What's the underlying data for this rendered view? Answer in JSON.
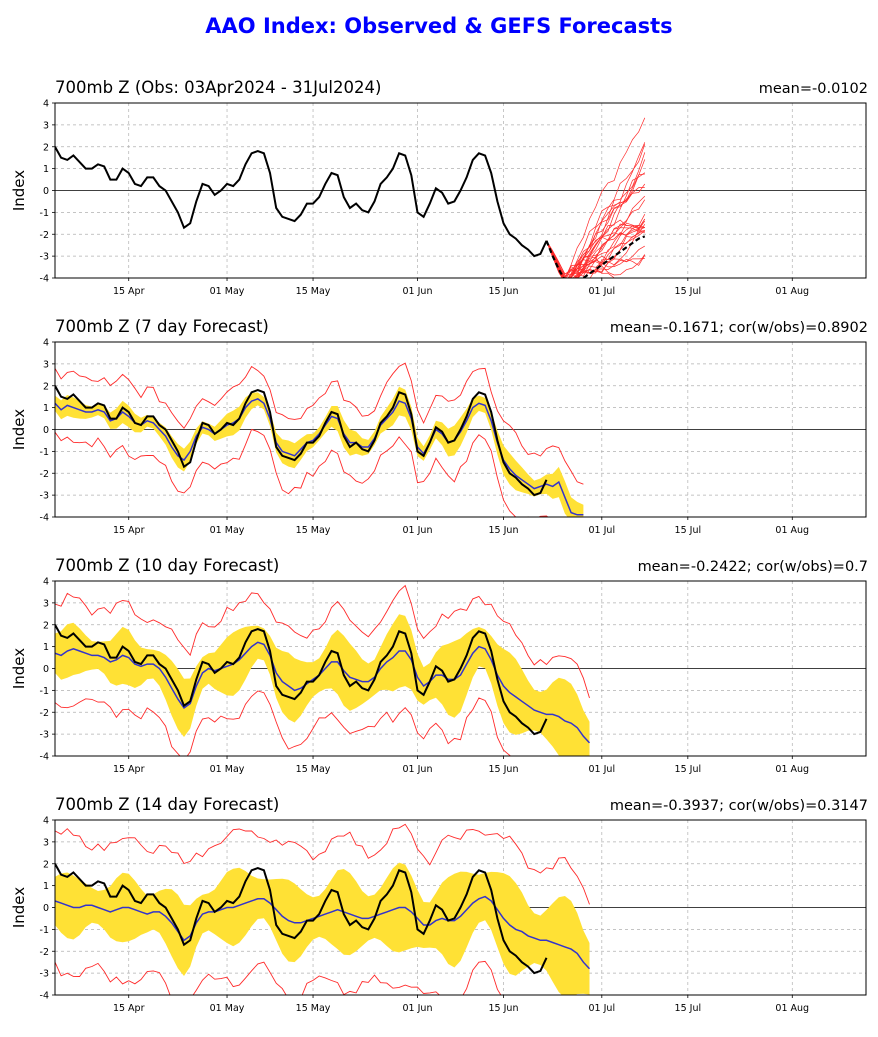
{
  "title": "AAO Index: Observed & GEFS Forecasts",
  "colors": {
    "title": "#0000ff",
    "obs": "#000000",
    "ens_mean": "#3333cc",
    "spread": "#ffe135",
    "members": "#ff2a2a",
    "grid": "#b0b0b0"
  },
  "panels": [
    {
      "title": "700mb Z (Obs: 03Apr2024 - 31Jul2024)",
      "stats": "mean=-0.0102",
      "ylabel": "Index"
    },
    {
      "title": "700mb Z (7 day Forecast)",
      "stats": "mean=-0.1671; cor(w/obs)=0.8902",
      "ylabel": "Index"
    },
    {
      "title": "700mb Z (10 day Forecast)",
      "stats": "mean=-0.2422; cor(w/obs)=0.7",
      "ylabel": "Index"
    },
    {
      "title": "700mb Z (14 day Forecast)",
      "stats": "mean=-0.3937; cor(w/obs)=0.3147",
      "ylabel": "Index"
    }
  ],
  "chart_data": {
    "type": "line",
    "x_start": "2024-04-03",
    "x_ticks": [
      "15 Apr",
      "01 May",
      "15 May",
      "01 Jun",
      "15 Jun",
      "01 Jul",
      "15 Jul",
      "01 Aug"
    ],
    "y_ticks": [
      4,
      3,
      2,
      1,
      0,
      -1,
      -2,
      -3,
      -4
    ],
    "ylim": [
      -4,
      4
    ],
    "grid": true,
    "observed": [
      2.0,
      1.5,
      1.4,
      1.6,
      1.3,
      1.0,
      1.0,
      1.2,
      1.1,
      0.5,
      0.5,
      1.0,
      0.8,
      0.3,
      0.2,
      0.6,
      0.6,
      0.2,
      0.0,
      -0.5,
      -1.0,
      -1.7,
      -1.5,
      -0.5,
      0.3,
      0.2,
      -0.2,
      0.0,
      0.3,
      0.2,
      0.5,
      1.2,
      1.7,
      1.8,
      1.7,
      0.8,
      -0.8,
      -1.2,
      -1.3,
      -1.4,
      -1.1,
      -0.6,
      -0.6,
      -0.3,
      0.3,
      0.8,
      0.7,
      -0.3,
      -0.8,
      -0.6,
      -0.9,
      -1.0,
      -0.5,
      0.3,
      0.6,
      1.0,
      1.7,
      1.6,
      0.7,
      -1.0,
      -1.2,
      -0.6,
      0.1,
      -0.1,
      -0.6,
      -0.5,
      0.0,
      0.6,
      1.4,
      1.7,
      1.6,
      0.8,
      -0.5,
      -1.5,
      -2.0,
      -2.2,
      -2.5,
      -2.7,
      -3.0,
      -2.9,
      -2.3
    ],
    "series": [
      {
        "name": "obs",
        "forecast_days": 7,
        "ens_mean": [
          1.2,
          0.9,
          1.1,
          1.0,
          0.9,
          0.8,
          0.8,
          0.9,
          0.8,
          0.4,
          0.5,
          0.8,
          0.6,
          0.3,
          0.2,
          0.4,
          0.3,
          0.0,
          -0.3,
          -0.8,
          -1.2,
          -1.4,
          -1.0,
          -0.3,
          0.1,
          0.0,
          -0.2,
          0.0,
          0.2,
          0.3,
          0.5,
          1.0,
          1.3,
          1.4,
          1.2,
          0.5,
          -0.6,
          -1.0,
          -1.1,
          -1.2,
          -0.9,
          -0.6,
          -0.5,
          -0.2,
          0.2,
          0.6,
          0.5,
          -0.2,
          -0.6,
          -0.6,
          -0.8,
          -0.8,
          -0.4,
          0.2,
          0.5,
          0.8,
          1.3,
          1.2,
          0.5,
          -0.8,
          -1.1,
          -0.6,
          0.0,
          -0.2,
          -0.6,
          -0.5,
          -0.1,
          0.4,
          1.0,
          1.2,
          1.1,
          0.4,
          -0.6,
          -1.4,
          -1.8,
          -2.1,
          -2.3,
          -2.5,
          -2.7,
          -2.6,
          -2.5,
          -2.6,
          -2.4,
          -3.1,
          -3.8,
          -3.9,
          -3.9
        ]
      },
      {
        "name": "obs",
        "forecast_days": 10,
        "ens_mean": [
          0.7,
          0.6,
          0.8,
          0.9,
          0.8,
          0.7,
          0.6,
          0.6,
          0.5,
          0.3,
          0.4,
          0.6,
          0.5,
          0.2,
          0.1,
          0.2,
          0.2,
          0.0,
          -0.4,
          -0.9,
          -1.4,
          -1.8,
          -1.6,
          -0.8,
          -0.2,
          0.0,
          -0.1,
          0.0,
          0.1,
          0.2,
          0.4,
          0.7,
          1.0,
          1.2,
          1.1,
          0.6,
          -0.2,
          -0.6,
          -0.8,
          -1.0,
          -0.9,
          -0.7,
          -0.5,
          -0.3,
          0.0,
          0.3,
          0.3,
          -0.1,
          -0.4,
          -0.5,
          -0.6,
          -0.6,
          -0.4,
          0.0,
          0.3,
          0.5,
          0.8,
          0.8,
          0.4,
          -0.4,
          -0.8,
          -0.6,
          -0.3,
          -0.3,
          -0.5,
          -0.5,
          -0.3,
          0.2,
          0.7,
          1.0,
          0.9,
          0.4,
          -0.3,
          -0.8,
          -1.1,
          -1.3,
          -1.5,
          -1.7,
          -1.9,
          -2.0,
          -2.1,
          -2.1,
          -2.2,
          -2.4,
          -2.5,
          -2.7,
          -3.1,
          -3.4
        ]
      },
      {
        "name": "obs",
        "forecast_days": 14,
        "ens_mean": [
          0.3,
          0.2,
          0.1,
          0.0,
          0.0,
          0.1,
          0.1,
          0.0,
          -0.1,
          -0.2,
          -0.1,
          0.0,
          0.0,
          -0.1,
          -0.2,
          -0.3,
          -0.2,
          -0.2,
          -0.4,
          -0.7,
          -1.1,
          -1.5,
          -1.3,
          -0.7,
          -0.3,
          -0.2,
          -0.2,
          -0.1,
          0.0,
          0.0,
          0.1,
          0.2,
          0.3,
          0.4,
          0.4,
          0.2,
          -0.1,
          -0.4,
          -0.6,
          -0.7,
          -0.7,
          -0.6,
          -0.5,
          -0.4,
          -0.3,
          -0.2,
          -0.1,
          -0.2,
          -0.3,
          -0.4,
          -0.5,
          -0.5,
          -0.4,
          -0.3,
          -0.2,
          -0.1,
          0.0,
          0.0,
          -0.2,
          -0.5,
          -0.8,
          -0.8,
          -0.6,
          -0.5,
          -0.6,
          -0.6,
          -0.4,
          -0.1,
          0.2,
          0.4,
          0.5,
          0.3,
          -0.1,
          -0.5,
          -0.8,
          -1.0,
          -1.1,
          -1.3,
          -1.4,
          -1.5,
          -1.5,
          -1.6,
          -1.7,
          -1.8,
          -1.9,
          -2.1,
          -2.5,
          -2.8
        ]
      }
    ]
  }
}
